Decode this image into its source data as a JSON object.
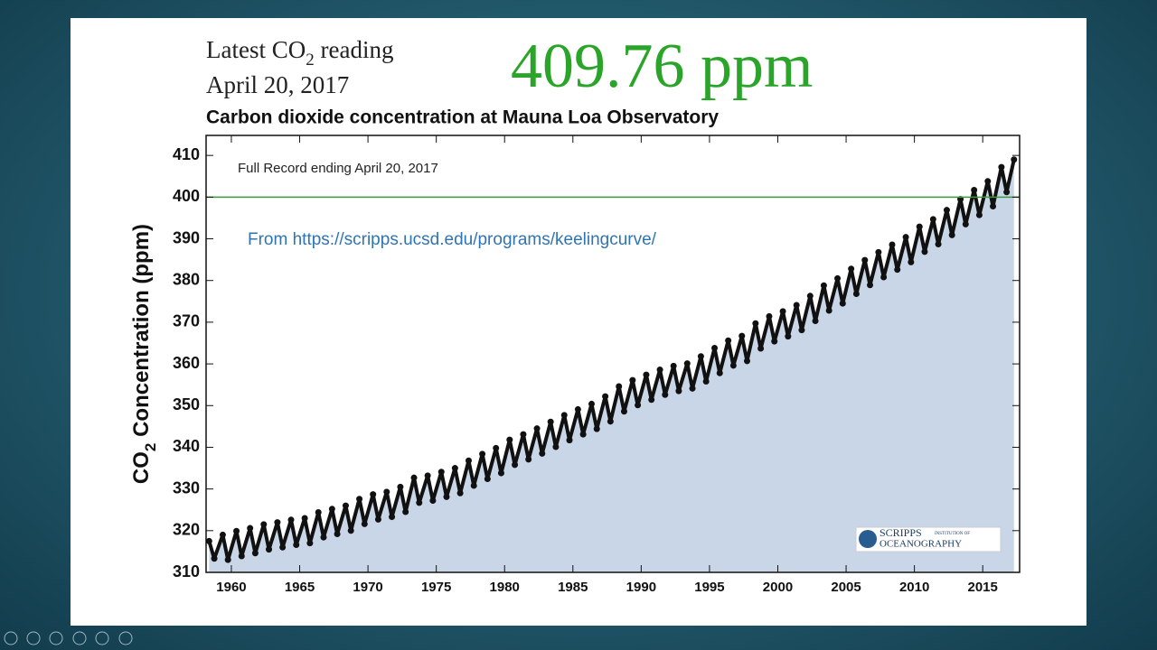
{
  "slide": {
    "latest_prefix": "Latest CO",
    "latest_subscript": "2",
    "latest_suffix": " reading",
    "date": "April 20, 2017",
    "reading": "409.76 ppm",
    "source": "From https://scripps.ucsd.edu/programs/keelingcurve/",
    "logo": {
      "name": "SCRIPPS",
      "sub": "INSTITUTION OF",
      "field": "OCEANOGRAPHY"
    }
  },
  "chart_data": {
    "type": "scatter",
    "title": "Carbon dioxide concentration at Mauna Loa Observatory",
    "annotation": "Full Record ending April 20, 2017",
    "ylabel_prefix": "CO",
    "ylabel_subscript": "2",
    "ylabel_suffix": " Concentration (ppm)",
    "xlim": [
      1958.15,
      2017.7
    ],
    "ylim": [
      310,
      414.8
    ],
    "xticks": [
      1960,
      1965,
      1970,
      1975,
      1980,
      1985,
      1990,
      1995,
      2000,
      2005,
      2010,
      2015
    ],
    "yticks": [
      310,
      320,
      330,
      340,
      350,
      360,
      370,
      380,
      390,
      400,
      410
    ],
    "reference_line": 400,
    "reference_color": "#3a9a3a",
    "color": "#111111",
    "fill_color": "#c9d6e8",
    "x": [
      1958.37,
      1958.75,
      1959.37,
      1959.75,
      1960.37,
      1960.75,
      1961.37,
      1961.75,
      1962.37,
      1962.75,
      1963.37,
      1963.75,
      1964.37,
      1964.75,
      1965.37,
      1965.75,
      1966.37,
      1966.75,
      1967.37,
      1967.75,
      1968.37,
      1968.75,
      1969.37,
      1969.75,
      1970.37,
      1970.75,
      1971.37,
      1971.75,
      1972.37,
      1972.75,
      1973.37,
      1973.75,
      1974.37,
      1974.75,
      1975.37,
      1975.75,
      1976.37,
      1976.75,
      1977.37,
      1977.75,
      1978.37,
      1978.75,
      1979.37,
      1979.75,
      1980.37,
      1980.75,
      1981.37,
      1981.75,
      1982.37,
      1982.75,
      1983.37,
      1983.75,
      1984.37,
      1984.75,
      1985.37,
      1985.75,
      1986.37,
      1986.75,
      1987.37,
      1987.75,
      1988.37,
      1988.75,
      1989.37,
      1989.75,
      1990.37,
      1990.75,
      1991.37,
      1991.75,
      1992.37,
      1992.75,
      1993.37,
      1993.75,
      1994.37,
      1994.75,
      1995.37,
      1995.75,
      1996.37,
      1996.75,
      1997.37,
      1997.75,
      1998.37,
      1998.75,
      1999.37,
      1999.75,
      2000.37,
      2000.75,
      2001.37,
      2001.75,
      2002.37,
      2002.75,
      2003.37,
      2003.75,
      2004.37,
      2004.75,
      2005.37,
      2005.75,
      2006.37,
      2006.75,
      2007.37,
      2007.75,
      2008.37,
      2008.75,
      2009.37,
      2009.75,
      2010.37,
      2010.75,
      2011.37,
      2011.75,
      2012.37,
      2012.75,
      2013.37,
      2013.75,
      2014.37,
      2014.75,
      2015.37,
      2015.75,
      2016.37,
      2016.75,
      2017.29
    ],
    "values": [
      317.5,
      313.3,
      319.0,
      313.0,
      319.9,
      313.9,
      320.6,
      314.6,
      321.5,
      315.5,
      322.0,
      316.0,
      322.6,
      316.6,
      323.0,
      317.0,
      324.4,
      318.4,
      325.2,
      319.2,
      326.0,
      320.0,
      327.6,
      321.6,
      328.7,
      322.7,
      329.3,
      323.3,
      330.5,
      324.5,
      332.7,
      326.7,
      333.2,
      327.2,
      334.1,
      328.1,
      335.0,
      329.0,
      336.8,
      330.8,
      338.4,
      332.4,
      339.8,
      333.8,
      341.8,
      335.8,
      343.1,
      337.1,
      344.5,
      338.5,
      346.1,
      340.1,
      347.7,
      341.7,
      349.1,
      343.1,
      350.4,
      344.4,
      352.2,
      346.2,
      354.6,
      348.6,
      356.1,
      350.1,
      357.4,
      351.4,
      358.6,
      352.6,
      359.5,
      353.5,
      360.1,
      354.1,
      361.8,
      355.8,
      363.8,
      357.8,
      365.6,
      359.6,
      366.7,
      360.7,
      369.7,
      363.7,
      371.4,
      365.4,
      372.6,
      366.6,
      374.1,
      368.1,
      376.3,
      370.3,
      378.8,
      372.8,
      380.5,
      374.5,
      382.8,
      376.8,
      384.9,
      378.9,
      386.8,
      380.8,
      388.6,
      382.6,
      390.4,
      384.4,
      392.9,
      386.9,
      394.7,
      388.7,
      396.9,
      390.9,
      399.5,
      393.5,
      401.7,
      395.7,
      403.8,
      397.8,
      407.2,
      401.2,
      409.0
    ]
  }
}
